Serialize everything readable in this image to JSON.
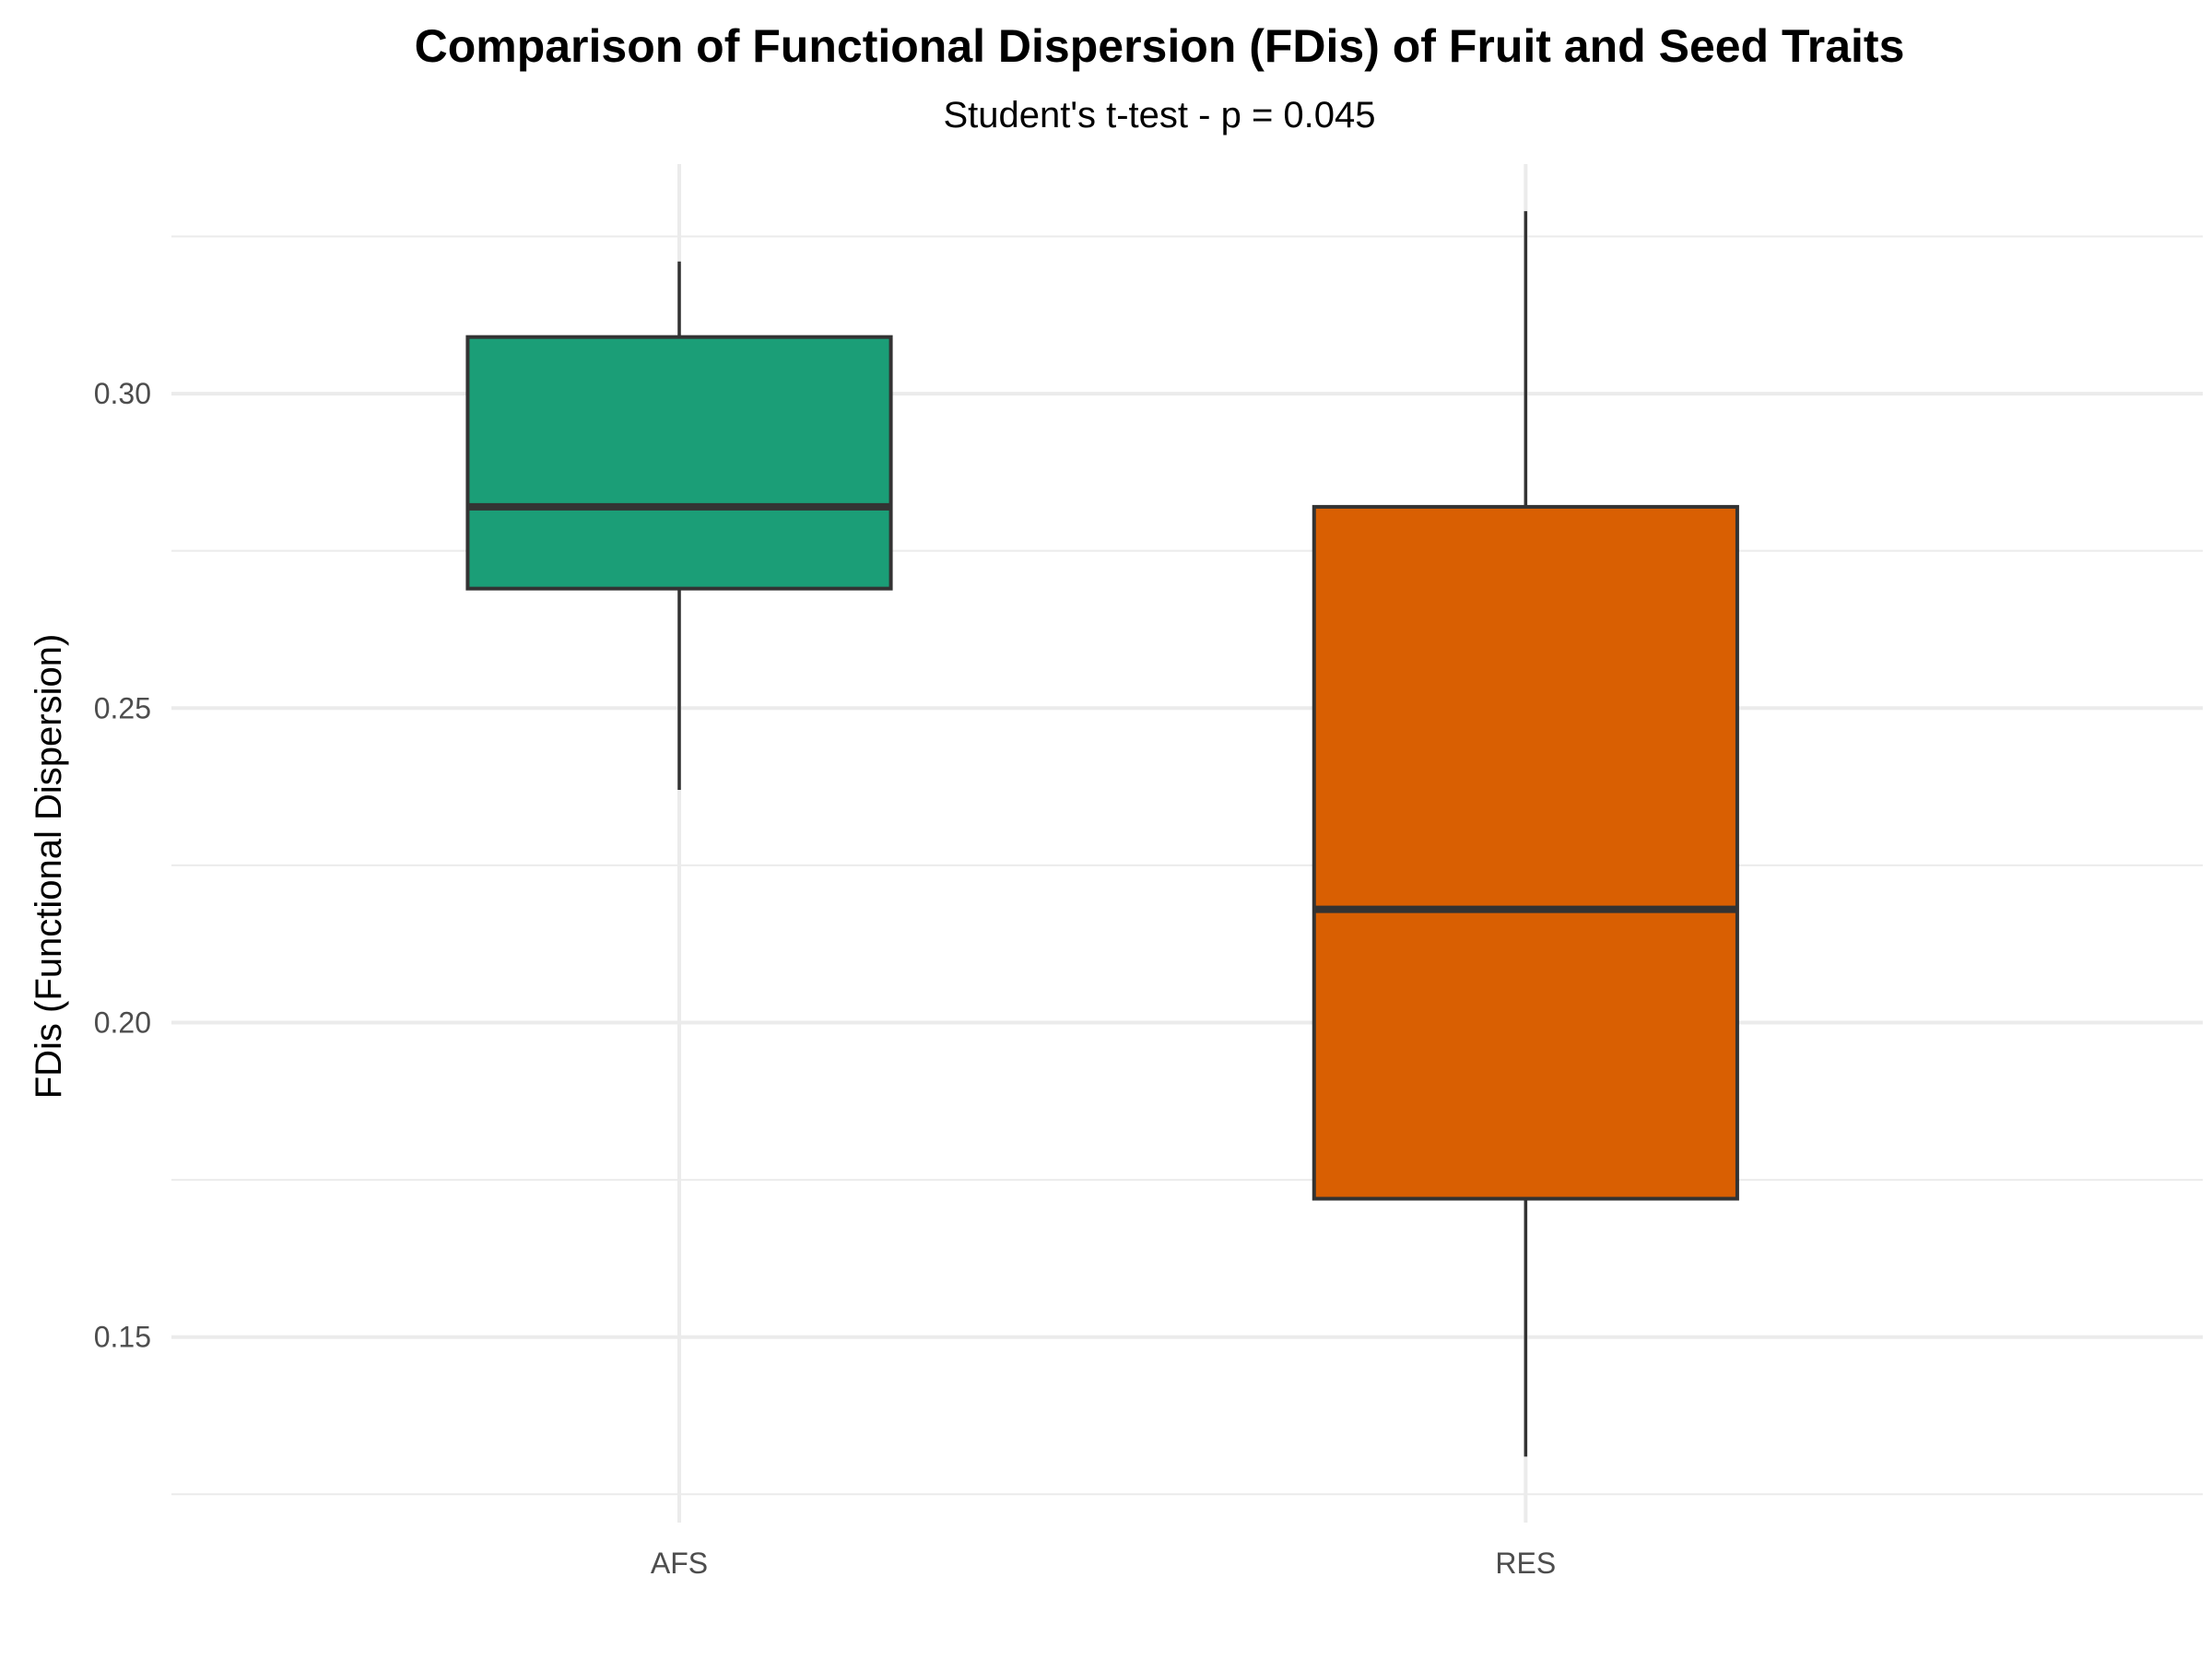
{
  "chart_data": {
    "type": "boxplot",
    "title": "Comparison of Functional Dispersion (FDis) of Fruit and Seed Traits",
    "subtitle": "Student's t-test - p = 0.045",
    "xlabel": "",
    "ylabel": "FDis (Functional Dispersion)",
    "ylim": [
      0.1205,
      0.3365
    ],
    "y_ticks": [
      0.15,
      0.2,
      0.25,
      0.3
    ],
    "y_tick_labels": [
      "0.15",
      "0.20",
      "0.25",
      "0.30"
    ],
    "grid": true,
    "legend": "none",
    "categories": [
      "AFS",
      "RES"
    ],
    "boxes": [
      {
        "category": "AFS",
        "whisker_low": 0.237,
        "q1": 0.269,
        "median": 0.282,
        "q3": 0.309,
        "whisker_high": 0.321,
        "color": "#1b9e77"
      },
      {
        "category": "RES",
        "whisker_low": 0.131,
        "q1": 0.172,
        "median": 0.218,
        "q3": 0.282,
        "whisker_high": 0.329,
        "color": "#d95f02"
      }
    ]
  }
}
